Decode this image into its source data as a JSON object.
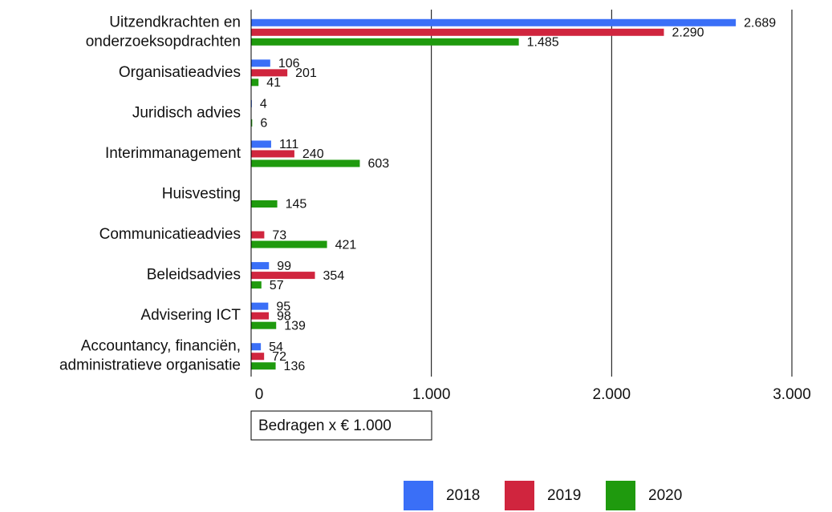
{
  "chart_data": {
    "type": "bar",
    "orientation": "horizontal",
    "categories": [
      [
        "Uitzendkrachten en",
        "onderzoeksopdrachten"
      ],
      "Organisatieadvies",
      "Juridisch advies",
      "Interimmanagement",
      "Huisvesting",
      "Communicatieadvies",
      "Beleidsadvies",
      "Advisering ICT",
      [
        "Accountancy, financiën,",
        "administratieve organisatie"
      ]
    ],
    "series": [
      {
        "name": "2018",
        "color": "#3a6ff7",
        "values": [
          2689,
          106,
          4,
          111,
          null,
          null,
          99,
          95,
          54
        ],
        "value_labels": [
          "2.689",
          "106",
          "4",
          "111",
          null,
          null,
          "99",
          "95",
          "54"
        ]
      },
      {
        "name": "2019",
        "color": "#d0253e",
        "values": [
          2290,
          201,
          null,
          240,
          null,
          73,
          354,
          98,
          72
        ],
        "value_labels": [
          "2.290",
          "201",
          null,
          "240",
          null,
          "73",
          "354",
          "98",
          "72"
        ]
      },
      {
        "name": "2020",
        "color": "#1f9a0e",
        "values": [
          1485,
          41,
          6,
          603,
          145,
          421,
          57,
          139,
          136
        ],
        "value_labels": [
          "1.485",
          "41",
          "6",
          "603",
          "145",
          "421",
          "57",
          "139",
          "136"
        ]
      }
    ],
    "xlabel": "Bedragen x € 1.000",
    "xlim": [
      0,
      3000
    ],
    "xticks": [
      0,
      {
        "value": 1000,
        "label": "1.000"
      },
      {
        "value": 2000,
        "label": "2.000"
      },
      {
        "value": 3000,
        "label": "3.000"
      }
    ],
    "grid": true,
    "legend": "bottom"
  }
}
